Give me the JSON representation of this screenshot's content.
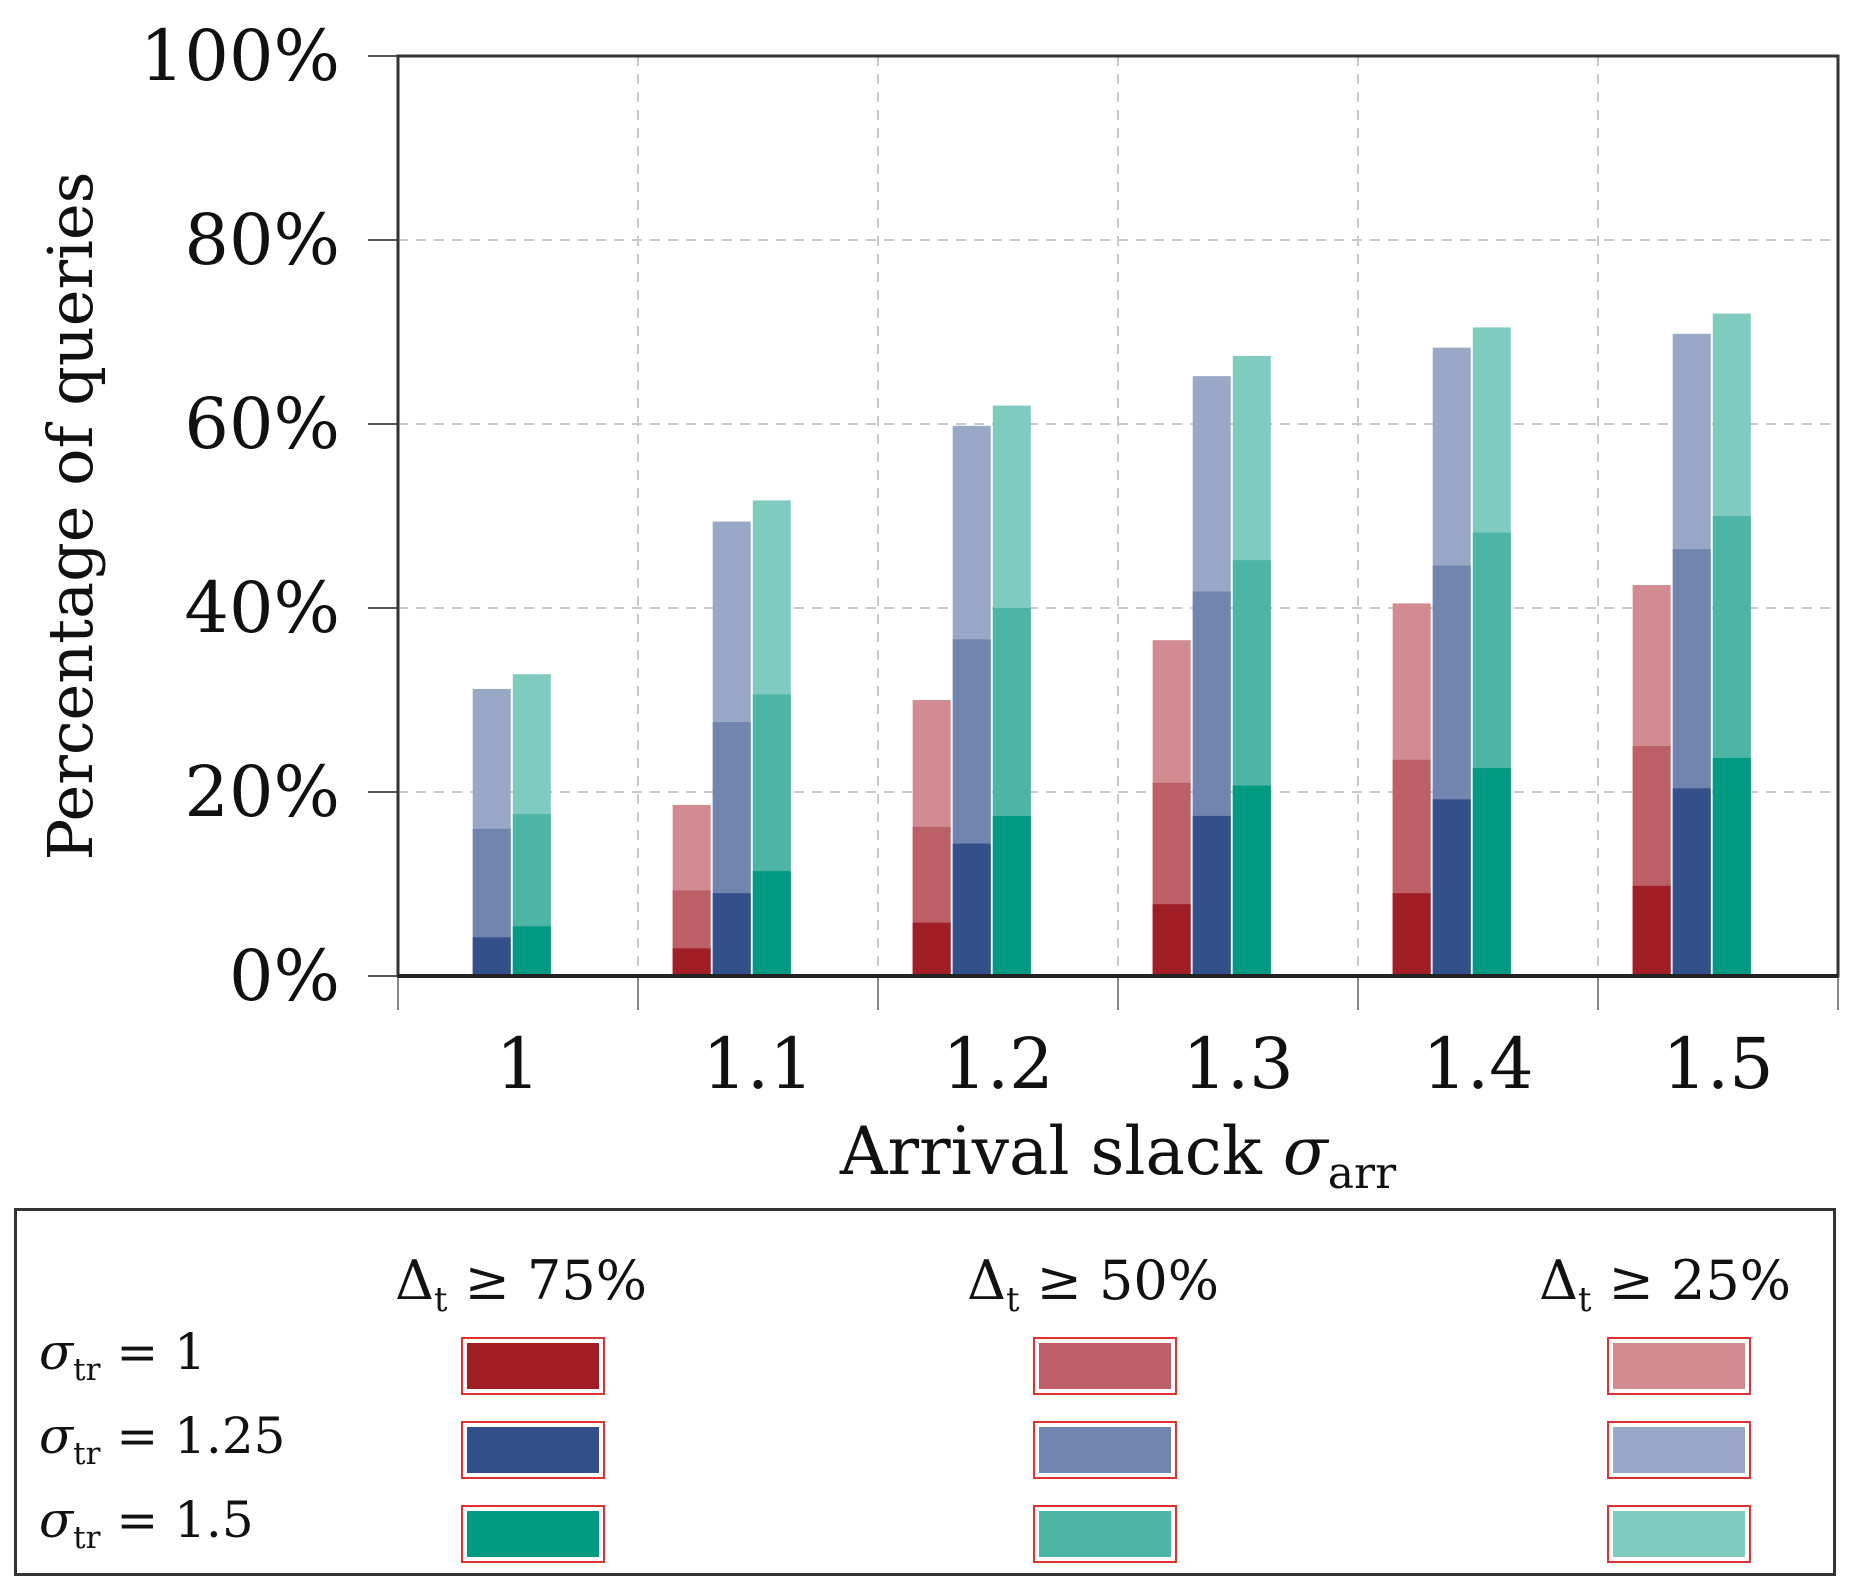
{
  "chart_data": {
    "type": "bar",
    "stacked": false,
    "overlapping_layers": true,
    "xlabel_text": "Arrival slack",
    "xlabel_symbol": "σ",
    "xlabel_subscript": "arr",
    "ylabel": "Percentage of queries",
    "categories": [
      "1",
      "1.1",
      "1.2",
      "1.3",
      "1.4",
      "1.5"
    ],
    "y_ticks": [
      "0%",
      "20%",
      "40%",
      "60%",
      "80%",
      "100%"
    ],
    "ylim": [
      0,
      100
    ],
    "grid": true,
    "groups": [
      {
        "label_symbol": "σ",
        "label_subscript": "tr",
        "label_value": "= 1",
        "colors": [
          "#a01d26",
          "#bc5f66",
          "#d18b91"
        ],
        "layers": [
          {
            "threshold": "≥ 75%",
            "values": [
              0,
              3,
              5.8,
              7.8,
              9,
              9.8
            ]
          },
          {
            "threshold": "≥ 50%",
            "values": [
              0,
              9.3,
              16.2,
              21,
              23.5,
              25
            ]
          },
          {
            "threshold": "≥ 25%",
            "values": [
              0,
              18.6,
              30,
              36.5,
              40.5,
              42.5
            ]
          }
        ]
      },
      {
        "label_symbol": "σ",
        "label_subscript": "tr",
        "label_value": "= 1.25",
        "colors": [
          "#34508b",
          "#7185b0",
          "#99a8c6"
        ],
        "layers": [
          {
            "threshold": "≥ 75%",
            "values": [
              4.2,
              9,
              14.4,
              17.4,
              19.2,
              20.4
            ]
          },
          {
            "threshold": "≥ 50%",
            "values": [
              16,
              27.6,
              36.6,
              41.8,
              44.6,
              46.4
            ]
          },
          {
            "threshold": "≥ 25%",
            "values": [
              31.2,
              49.4,
              59.8,
              65.2,
              68.3,
              69.8
            ]
          }
        ]
      },
      {
        "label_symbol": "σ",
        "label_subscript": "tr",
        "label_value": "= 1.5",
        "colors": [
          "#009a82",
          "#4db5a6",
          "#80cbc0"
        ],
        "layers": [
          {
            "threshold": "≥ 75%",
            "values": [
              5.4,
              11.4,
              17.4,
              20.7,
              22.6,
              23.7
            ]
          },
          {
            "threshold": "≥ 50%",
            "values": [
              17.6,
              30.6,
              40,
              45.2,
              48.2,
              50
            ]
          },
          {
            "threshold": "≥ 25%",
            "values": [
              32.8,
              51.7,
              62,
              67.4,
              70.5,
              72
            ]
          }
        ]
      }
    ],
    "legend": {
      "placement": "bottom",
      "headers": [
        {
          "symbol": "Δ",
          "subscript": "t",
          "rest": "≥ 75%"
        },
        {
          "symbol": "Δ",
          "subscript": "t",
          "rest": "≥ 50%"
        },
        {
          "symbol": "Δ",
          "subscript": "t",
          "rest": "≥ 25%"
        }
      ]
    }
  }
}
